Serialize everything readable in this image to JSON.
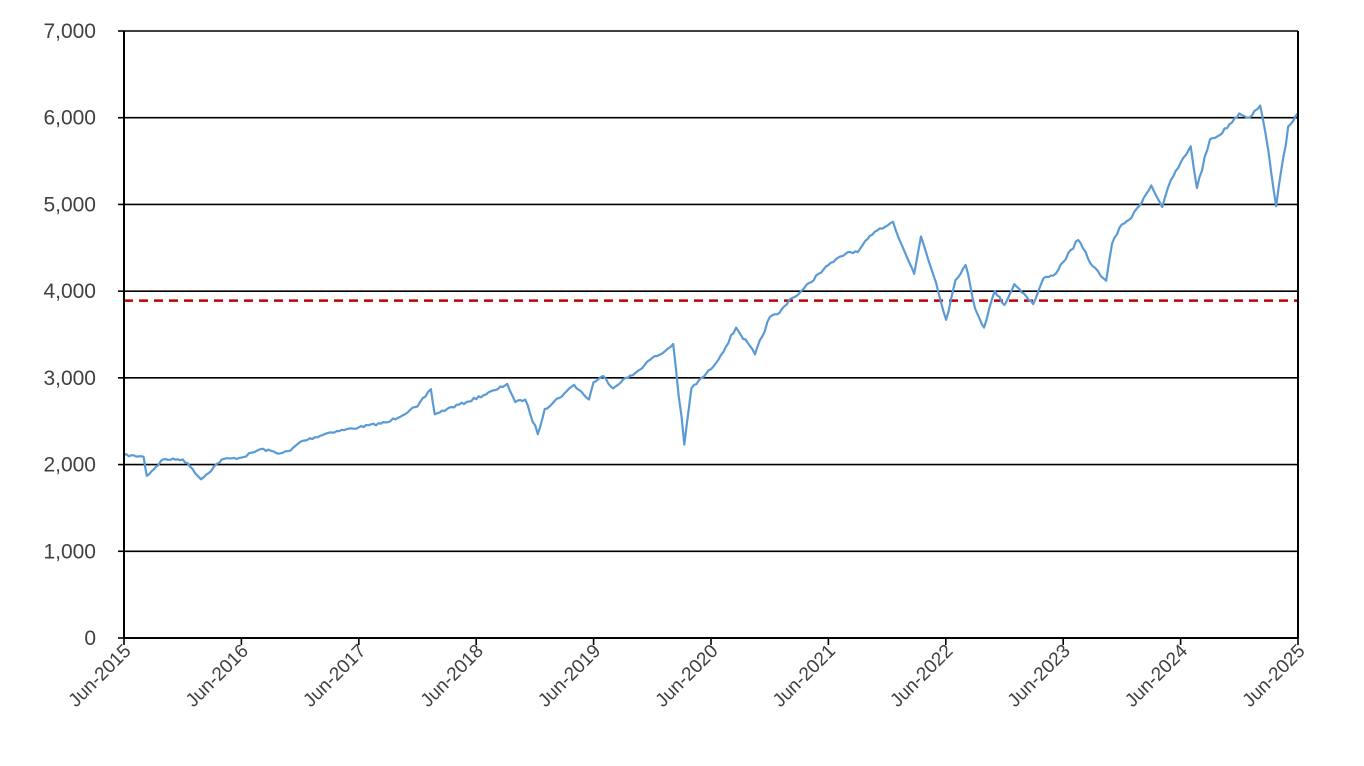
{
  "chart_data": {
    "type": "line",
    "title": "",
    "xlabel": "",
    "ylabel": "",
    "ylim": [
      0,
      7000
    ],
    "xlim": [
      "2015-06",
      "2025-06"
    ],
    "grid": "horizontal",
    "legend": "none",
    "y_ticks": [
      "0",
      "1,000",
      "2,000",
      "3,000",
      "4,000",
      "5,000",
      "6,000",
      "7,000"
    ],
    "x_ticks": [
      "Jun-2015",
      "Jun-2016",
      "Jun-2017",
      "Jun-2018",
      "Jun-2019",
      "Jun-2020",
      "Jun-2021",
      "Jun-2022",
      "Jun-2023",
      "Jun-2024",
      "Jun-2025"
    ],
    "reference_line": {
      "y": 3890,
      "color": "#c00000",
      "style": "dashed"
    },
    "series": [
      {
        "color": "#5b9bd5",
        "x": [
          "2015-06",
          "2015-08",
          "2015-08-25",
          "2015-10",
          "2015-12",
          "2016-01",
          "2016-02-11",
          "2016-04",
          "2016-06",
          "2016-08",
          "2016-10",
          "2016-11",
          "2016-12",
          "2017-03",
          "2017-06",
          "2017-09",
          "2017-12",
          "2018-01-26",
          "2018-02-08",
          "2018-03",
          "2018-05",
          "2018-08",
          "2018-09-20",
          "2018-10",
          "2018-11",
          "2018-12-24",
          "2019-01",
          "2019-03",
          "2019-04",
          "2019-05-31",
          "2019-06",
          "2019-07",
          "2019-08",
          "2019-09",
          "2019-10",
          "2019-12",
          "2020-01",
          "2020-02-19",
          "2020-03-23",
          "2020-04",
          "2020-06",
          "2020-07",
          "2020-09-02",
          "2020-10-30",
          "2020-12",
          "2021-01",
          "2021-02",
          "2021-03",
          "2021-05",
          "2021-06",
          "2021-08",
          "2021-09",
          "2021-10",
          "2021-11",
          "2022-01-03",
          "2022-02",
          "2022-03-08",
          "2022-03-29",
          "2022-05",
          "2022-06-16",
          "2022-07",
          "2022-08-16",
          "2022-09",
          "2022-10-12",
          "2022-11",
          "2022-12",
          "2023-01",
          "2023-02",
          "2023-03-13",
          "2023-04",
          "2023-05",
          "2023-07-31",
          "2023-09",
          "2023-10-27",
          "2023-11",
          "2023-12",
          "2024-01",
          "2024-03",
          "2024-04-19",
          "2024-05",
          "2024-07-16",
          "2024-08-05",
          "2024-09",
          "2024-10",
          "2024-12",
          "2025-01",
          "2025-02-19",
          "2025-03",
          "2025-04-08",
          "2025-05",
          "2025-06"
        ],
        "y": [
          2110,
          2090,
          1870,
          2060,
          2060,
          1950,
          1830,
          2060,
          2080,
          2180,
          2130,
          2160,
          2260,
          2370,
          2430,
          2490,
          2670,
          2870,
          2580,
          2640,
          2720,
          2860,
          2930,
          2720,
          2750,
          2350,
          2640,
          2820,
          2920,
          2750,
          2950,
          3020,
          2880,
          2980,
          3030,
          3230,
          3280,
          3390,
          2230,
          2880,
          3100,
          3260,
          3580,
          3270,
          3700,
          3750,
          3900,
          3970,
          4200,
          4300,
          4450,
          4450,
          4600,
          4700,
          4800,
          4400,
          4200,
          4630,
          4100,
          3670,
          4130,
          4300,
          3800,
          3580,
          4000,
          3840,
          4080,
          3970,
          3850,
          4150,
          4180,
          4590,
          4290,
          4120,
          4550,
          4770,
          4850,
          5220,
          4970,
          5280,
          5670,
          5190,
          5750,
          5800,
          6050,
          6000,
          6140,
          5600,
          4980,
          5900,
          6050
        ]
      }
    ]
  }
}
